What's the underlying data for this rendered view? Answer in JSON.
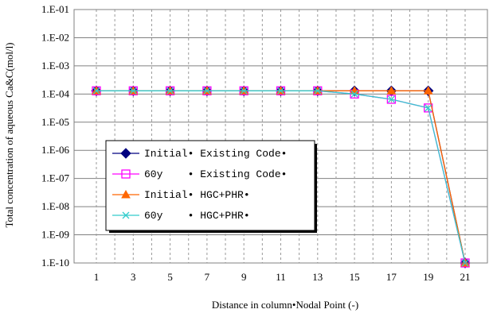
{
  "chart_data": {
    "type": "line",
    "xlabel": "Distance in column•Nodal Point (-)",
    "ylabel": "Total concentration of aqueous Ca&C(mol/l)",
    "x_ticks": [
      1,
      3,
      5,
      7,
      9,
      11,
      13,
      15,
      17,
      19,
      21
    ],
    "x_range": [
      1,
      21
    ],
    "y_scale": "log",
    "y_range": [
      1e-10,
      0.1
    ],
    "y_ticks": [
      {
        "v": 0.1,
        "label": "1.E-01"
      },
      {
        "v": 0.01,
        "label": "1.E-02"
      },
      {
        "v": 0.001,
        "label": "1.E-03"
      },
      {
        "v": 0.0001,
        "label": "1.E-04"
      },
      {
        "v": 1e-05,
        "label": "1.E-05"
      },
      {
        "v": 1e-06,
        "label": "1.E-06"
      },
      {
        "v": 1e-07,
        "label": "1.E-07"
      },
      {
        "v": 1e-08,
        "label": "1.E-08"
      },
      {
        "v": 1e-09,
        "label": "1.E-09"
      },
      {
        "v": 1e-10,
        "label": "1.E-10"
      }
    ],
    "grid": true,
    "legend_position": "left-lower",
    "series": [
      {
        "name": "Initial• Existing Code•",
        "color": "#000080",
        "marker": "diamond",
        "x": [
          1,
          3,
          5,
          7,
          9,
          11,
          13,
          15,
          17,
          19,
          21
        ],
        "y": [
          0.00013,
          0.00013,
          0.00013,
          0.00013,
          0.00013,
          0.00013,
          0.00013,
          0.00013,
          0.00013,
          0.00013,
          1e-10
        ]
      },
      {
        "name": "60y    • Existing Code•",
        "color": "#ff00ff",
        "marker": "square",
        "x": [
          1,
          3,
          5,
          7,
          9,
          11,
          13,
          15,
          17,
          19,
          21
        ],
        "y": [
          0.00013,
          0.00013,
          0.00013,
          0.00013,
          0.00013,
          0.00013,
          0.00013,
          0.0001,
          6.5e-05,
          3.2e-05,
          1e-10
        ]
      },
      {
        "name": "Initial• HGC+PHR•",
        "color": "#ff6600",
        "marker": "triangle",
        "x": [
          1,
          3,
          5,
          7,
          9,
          11,
          13,
          15,
          17,
          19,
          21
        ],
        "y": [
          0.00013,
          0.00013,
          0.00013,
          0.00013,
          0.00013,
          0.00013,
          0.00013,
          0.00013,
          0.00013,
          0.00013,
          1e-10
        ]
      },
      {
        "name": "60y    • HGC+PHR•",
        "color": "#33cccc",
        "marker": "x",
        "x": [
          1,
          3,
          5,
          7,
          9,
          11,
          13,
          15,
          17,
          19,
          21
        ],
        "y": [
          0.00013,
          0.00013,
          0.00013,
          0.00013,
          0.00013,
          0.00013,
          0.00013,
          0.0001,
          6.5e-05,
          3.2e-05,
          1e-10
        ]
      }
    ]
  }
}
